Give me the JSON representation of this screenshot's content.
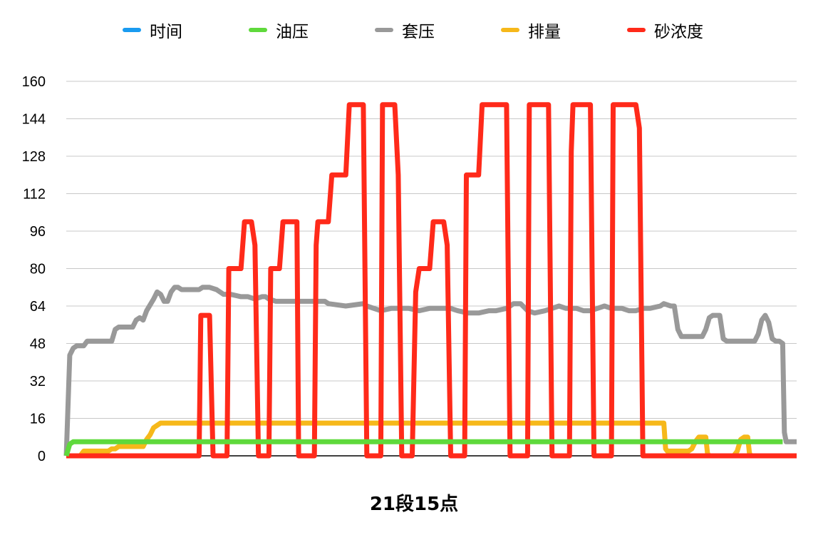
{
  "chart_data": {
    "type": "line",
    "xlabel": "21段15点",
    "ylim": [
      0,
      160
    ],
    "yticks": [
      0,
      16,
      32,
      48,
      64,
      80,
      96,
      112,
      128,
      144,
      160
    ],
    "grid": true,
    "legend_position": "top",
    "n_points": 206,
    "series": [
      {
        "name": "时间",
        "color": "#1a9bf0",
        "values": []
      },
      {
        "name": "油压",
        "color": "#5fd93c",
        "points": [
          [
            0,
            0
          ],
          [
            1,
            5
          ],
          [
            2,
            6
          ],
          [
            205,
            6
          ]
        ]
      },
      {
        "name": "套压",
        "color": "#999999",
        "points": [
          [
            0,
            0
          ],
          [
            1,
            43
          ],
          [
            2,
            46
          ],
          [
            3,
            47
          ],
          [
            5,
            47
          ],
          [
            6,
            49
          ],
          [
            8,
            49
          ],
          [
            12,
            49
          ],
          [
            13,
            49
          ],
          [
            14,
            54
          ],
          [
            15,
            55
          ],
          [
            16,
            55
          ],
          [
            19,
            55
          ],
          [
            20,
            58
          ],
          [
            21,
            59
          ],
          [
            22,
            58
          ],
          [
            23,
            62
          ],
          [
            25,
            67
          ],
          [
            26,
            70
          ],
          [
            27,
            69
          ],
          [
            28,
            66
          ],
          [
            29,
            66
          ],
          [
            30,
            70
          ],
          [
            31,
            72
          ],
          [
            32,
            72
          ],
          [
            33,
            71
          ],
          [
            35,
            71
          ],
          [
            38,
            71
          ],
          [
            39,
            72
          ],
          [
            41,
            72
          ],
          [
            43,
            71
          ],
          [
            45,
            69
          ],
          [
            47,
            69
          ],
          [
            50,
            68
          ],
          [
            52,
            68
          ],
          [
            54,
            67
          ],
          [
            56,
            68
          ],
          [
            57,
            68
          ],
          [
            58,
            67
          ],
          [
            60,
            66
          ],
          [
            62,
            66
          ],
          [
            65,
            66
          ],
          [
            68,
            66
          ],
          [
            70,
            66
          ],
          [
            74,
            66
          ],
          [
            75,
            65
          ],
          [
            80,
            64
          ],
          [
            85,
            65
          ],
          [
            86,
            64
          ],
          [
            90,
            62
          ],
          [
            93,
            63
          ],
          [
            96,
            63
          ],
          [
            98,
            63
          ],
          [
            101,
            62
          ],
          [
            104,
            63
          ],
          [
            110,
            63
          ],
          [
            112,
            62
          ],
          [
            115,
            61
          ],
          [
            118,
            61
          ],
          [
            121,
            62
          ],
          [
            123,
            62
          ],
          [
            126,
            63
          ],
          [
            128,
            65
          ],
          [
            130,
            65
          ],
          [
            132,
            62
          ],
          [
            134,
            61
          ],
          [
            137,
            62
          ],
          [
            139,
            63
          ],
          [
            141,
            64
          ],
          [
            143,
            63
          ],
          [
            146,
            63
          ],
          [
            148,
            62
          ],
          [
            150,
            62
          ],
          [
            152,
            63
          ],
          [
            154,
            64
          ],
          [
            156,
            63
          ],
          [
            159,
            63
          ],
          [
            161,
            62
          ],
          [
            163,
            62
          ],
          [
            165,
            63
          ],
          [
            167,
            63
          ],
          [
            170,
            64
          ],
          [
            171,
            65
          ],
          [
            173,
            64
          ],
          [
            174,
            64
          ],
          [
            175,
            54
          ],
          [
            176,
            51
          ],
          [
            178,
            51
          ],
          [
            181,
            51
          ],
          [
            182,
            51
          ],
          [
            183,
            54
          ],
          [
            184,
            59
          ],
          [
            185,
            60
          ],
          [
            187,
            60
          ],
          [
            188,
            50
          ],
          [
            189,
            49
          ],
          [
            191,
            49
          ],
          [
            196,
            49
          ],
          [
            197,
            49
          ],
          [
            198,
            52
          ],
          [
            199,
            58
          ],
          [
            200,
            60
          ],
          [
            201,
            57
          ],
          [
            202,
            50
          ],
          [
            203,
            49
          ],
          [
            204,
            49
          ],
          [
            205,
            48
          ],
          [
            205.5,
            10
          ],
          [
            206,
            6
          ],
          [
            207,
            6
          ],
          [
            209,
            6
          ]
        ]
      },
      {
        "name": "排量",
        "color": "#f6b81a",
        "points": [
          [
            0,
            0
          ],
          [
            4,
            0
          ],
          [
            5,
            2
          ],
          [
            6,
            2
          ],
          [
            10,
            2
          ],
          [
            11,
            2
          ],
          [
            12,
            2
          ],
          [
            13,
            3
          ],
          [
            14,
            3
          ],
          [
            15,
            4
          ],
          [
            20,
            4
          ],
          [
            22,
            4
          ],
          [
            23,
            7
          ],
          [
            24,
            9
          ],
          [
            25,
            12
          ],
          [
            26,
            13
          ],
          [
            27,
            14
          ],
          [
            30,
            14
          ],
          [
            170,
            14
          ],
          [
            171,
            14
          ],
          [
            171.5,
            3
          ],
          [
            172,
            2
          ],
          [
            178,
            2
          ],
          [
            179,
            3
          ],
          [
            180,
            6
          ],
          [
            181,
            8
          ],
          [
            182,
            8
          ],
          [
            183,
            8
          ],
          [
            183.5,
            1
          ],
          [
            184,
            0
          ],
          [
            190,
            0
          ],
          [
            191,
            0
          ],
          [
            192,
            2
          ],
          [
            193,
            7
          ],
          [
            194,
            8
          ],
          [
            195,
            8
          ],
          [
            195.5,
            1
          ],
          [
            196,
            0
          ],
          [
            209,
            0
          ]
        ]
      },
      {
        "name": "砂浓度",
        "color": "#ff2a1a",
        "points": [
          [
            0,
            0
          ],
          [
            38,
            0
          ],
          [
            38.5,
            60
          ],
          [
            41,
            60
          ],
          [
            42,
            0
          ],
          [
            46,
            0
          ],
          [
            46.5,
            80
          ],
          [
            50,
            80
          ],
          [
            51,
            100
          ],
          [
            53,
            100
          ],
          [
            54,
            90
          ],
          [
            55,
            0
          ],
          [
            58,
            0
          ],
          [
            58.5,
            80
          ],
          [
            61,
            80
          ],
          [
            62,
            100
          ],
          [
            66,
            100
          ],
          [
            66.5,
            0
          ],
          [
            71,
            0
          ],
          [
            71.5,
            90
          ],
          [
            72,
            100
          ],
          [
            75,
            100
          ],
          [
            76,
            120
          ],
          [
            80,
            120
          ],
          [
            81,
            150
          ],
          [
            85,
            150
          ],
          [
            86,
            0
          ],
          [
            90,
            0
          ],
          [
            90.5,
            150
          ],
          [
            94,
            150
          ],
          [
            95,
            120
          ],
          [
            96,
            0
          ],
          [
            99,
            0
          ],
          [
            100,
            70
          ],
          [
            101,
            80
          ],
          [
            104,
            80
          ],
          [
            105,
            100
          ],
          [
            108,
            100
          ],
          [
            109,
            90
          ],
          [
            110,
            0
          ],
          [
            114,
            0
          ],
          [
            114.5,
            120
          ],
          [
            118,
            120
          ],
          [
            119,
            150
          ],
          [
            126,
            150
          ],
          [
            127,
            0
          ],
          [
            132,
            0
          ],
          [
            132.5,
            150
          ],
          [
            138,
            150
          ],
          [
            139,
            0
          ],
          [
            144,
            0
          ],
          [
            144.5,
            130
          ],
          [
            145,
            150
          ],
          [
            150,
            150
          ],
          [
            151,
            0
          ],
          [
            156,
            0
          ],
          [
            156.5,
            150
          ],
          [
            163,
            150
          ],
          [
            164,
            140
          ],
          [
            165,
            0
          ],
          [
            209,
            0
          ]
        ]
      }
    ]
  }
}
